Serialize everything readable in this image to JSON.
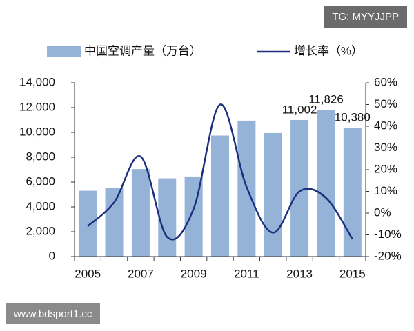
{
  "chart_data": {
    "type": "bar-line",
    "categories": [
      "2005",
      null,
      "2007",
      null,
      "2009",
      null,
      "2011",
      null,
      "2013",
      null,
      "2015"
    ],
    "series": [
      {
        "name": "中国空调产量（万台）",
        "type": "bar",
        "color": "#95b3d7",
        "values": [
          5300,
          5550,
          7050,
          6300,
          6450,
          9750,
          10950,
          9950,
          11002,
          11826,
          10380
        ],
        "value_labels": [
          null,
          null,
          null,
          null,
          null,
          null,
          null,
          null,
          "11,002",
          "11,826",
          "10,380"
        ]
      },
      {
        "name": "增长率（%）",
        "type": "line",
        "axis": "y2",
        "color": "#1c2f7e",
        "values": [
          -6,
          5,
          26,
          -11,
          2,
          50,
          12,
          -9,
          10,
          7,
          -12
        ]
      }
    ],
    "ylim": [
      0,
      14000
    ],
    "yticks": [
      0,
      {
        "value": 2000,
        "label": "2,000"
      },
      {
        "value": 4000,
        "label": "4,000"
      },
      {
        "value": 6000,
        "label": "6,000"
      },
      {
        "value": 8000,
        "label": "8,000"
      },
      {
        "value": 10000,
        "label": "10,000"
      },
      {
        "value": 12000,
        "label": "12,000"
      },
      {
        "value": 14000,
        "label": "14,000"
      }
    ],
    "y2lim": [
      -20,
      60
    ],
    "y2ticks": [
      {
        "value": -20,
        "label": "-20%"
      },
      {
        "value": -10,
        "label": "-10%"
      },
      {
        "value": 0,
        "label": "0%"
      },
      {
        "value": 10,
        "label": "10%"
      },
      {
        "value": 20,
        "label": "20%"
      },
      {
        "value": 30,
        "label": "30%"
      },
      {
        "value": 40,
        "label": "40%"
      },
      {
        "value": 50,
        "label": "50%"
      },
      {
        "value": 60,
        "label": "60%"
      }
    ],
    "legend": "top"
  },
  "badges": [
    "TG: MYYJJPP",
    "www.bdsport1.cc"
  ]
}
